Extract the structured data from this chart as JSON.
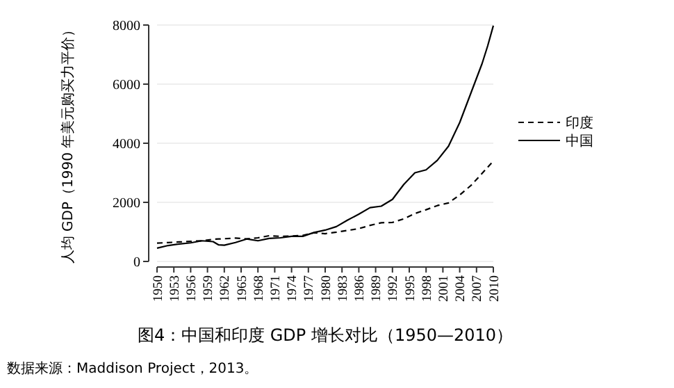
{
  "chart_data": {
    "type": "line",
    "title": "图4：中国和印度 GDP 增长对比（1950—2010）",
    "ylabel": "人均 GDP（1990 年美元购买力平价）",
    "annotations": [
      "数据来源：Maddison Project，2013。"
    ],
    "x": [
      1950,
      1952,
      1954,
      1956,
      1958,
      1960,
      1961,
      1962,
      1964,
      1966,
      1968,
      1970,
      1972,
      1974,
      1976,
      1978,
      1980,
      1982,
      1984,
      1986,
      1988,
      1990,
      1992,
      1994,
      1996,
      1998,
      2000,
      2002,
      2004,
      2006,
      2008,
      2009,
      2010
    ],
    "series": [
      {
        "name": "印度",
        "color": "#000000",
        "line_style": "dashed",
        "values": [
          620,
          640,
          660,
          680,
          700,
          750,
          760,
          770,
          790,
          760,
          800,
          870,
          850,
          860,
          880,
          970,
          940,
          990,
          1050,
          1110,
          1220,
          1310,
          1320,
          1440,
          1620,
          1750,
          1890,
          1980,
          2250,
          2570,
          2980,
          3190,
          3400
        ]
      },
      {
        "name": "中国",
        "color": "#000000",
        "line_style": "solid",
        "values": [
          450,
          540,
          590,
          630,
          700,
          670,
          560,
          550,
          640,
          760,
          700,
          780,
          800,
          850,
          850,
          980,
          1060,
          1180,
          1400,
          1600,
          1820,
          1870,
          2100,
          2600,
          3000,
          3100,
          3420,
          3900,
          4700,
          5700,
          6700,
          7300,
          7980
        ]
      }
    ],
    "xlim": [
      1950,
      2010
    ],
    "xticks": [
      1950,
      1953,
      1956,
      1959,
      1962,
      1965,
      1968,
      1971,
      1974,
      1977,
      1980,
      1983,
      1986,
      1989,
      1992,
      1995,
      1998,
      2001,
      2004,
      2007,
      2010
    ],
    "ylim": [
      0,
      8000
    ],
    "yticks": [
      0,
      2000,
      4000,
      6000,
      8000
    ],
    "grid": "y",
    "legend": "right"
  }
}
